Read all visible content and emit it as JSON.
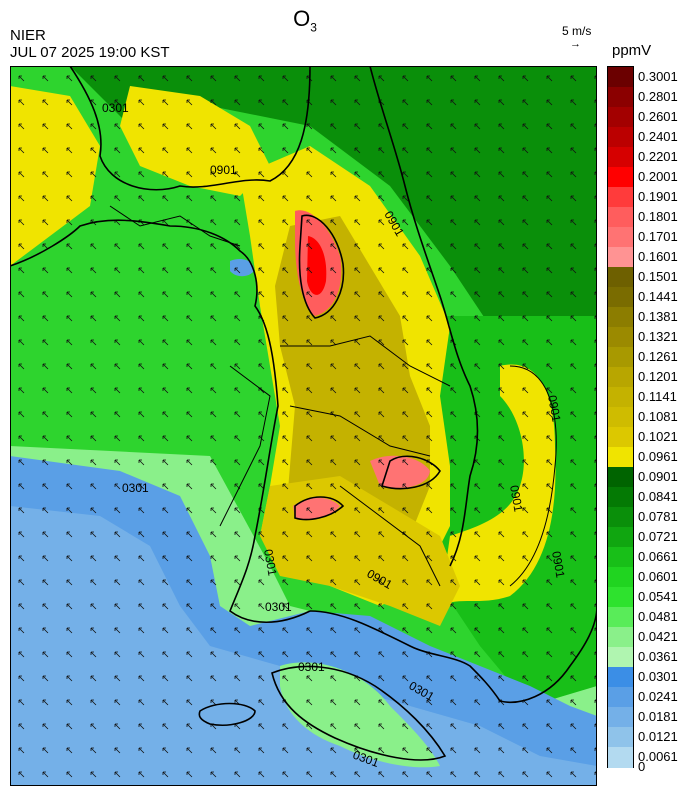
{
  "header": {
    "title_main": "O",
    "title_sub": "3",
    "org": "NIER",
    "timestamp": "JUL 07 2025 19:00 KST",
    "wind_scale_label": "5 m/s",
    "wind_scale_arrow": "→",
    "unit": "ppmV"
  },
  "legend": {
    "levels": [
      "0.3001",
      "0.2801",
      "0.2601",
      "0.2401",
      "0.2201",
      "0.2001",
      "0.1901",
      "0.1801",
      "0.1701",
      "0.1601",
      "0.1501",
      "0.1441",
      "0.1381",
      "0.1321",
      "0.1261",
      "0.1201",
      "0.1141",
      "0.1081",
      "0.1021",
      "0.0961",
      "0.0901",
      "0.0841",
      "0.0781",
      "0.0721",
      "0.0661",
      "0.0601",
      "0.0541",
      "0.0481",
      "0.0421",
      "0.0361",
      "0.0301",
      "0.0241",
      "0.0181",
      "0.0121",
      "0.0061",
      "0"
    ],
    "colors": [
      "#6b0000",
      "#8b0000",
      "#a30000",
      "#bb0000",
      "#d60000",
      "#ff0000",
      "#ff3b3b",
      "#ff5d5d",
      "#ff7373",
      "#ff9393",
      "#6e6000",
      "#7a6c00",
      "#8c7d00",
      "#9b8a00",
      "#a89900",
      "#b8a600",
      "#c4b200",
      "#cfbc00",
      "#dcc800",
      "#f0e400",
      "#006400",
      "#047a04",
      "#0a8f0a",
      "#10a610",
      "#18bf18",
      "#20d420",
      "#2ee22e",
      "#59ec59",
      "#8af08a",
      "#b0f5b0",
      "#3b8ee6",
      "#5a9fe6",
      "#74b0e8",
      "#8fc3ea",
      "#b3daf0"
    ]
  },
  "contour_labels": [
    "0301",
    "0901",
    "0901",
    "0301",
    "0901",
    "0301",
    "0901",
    "0301",
    "0301",
    "0301",
    "0901",
    "0301",
    "0901"
  ]
}
